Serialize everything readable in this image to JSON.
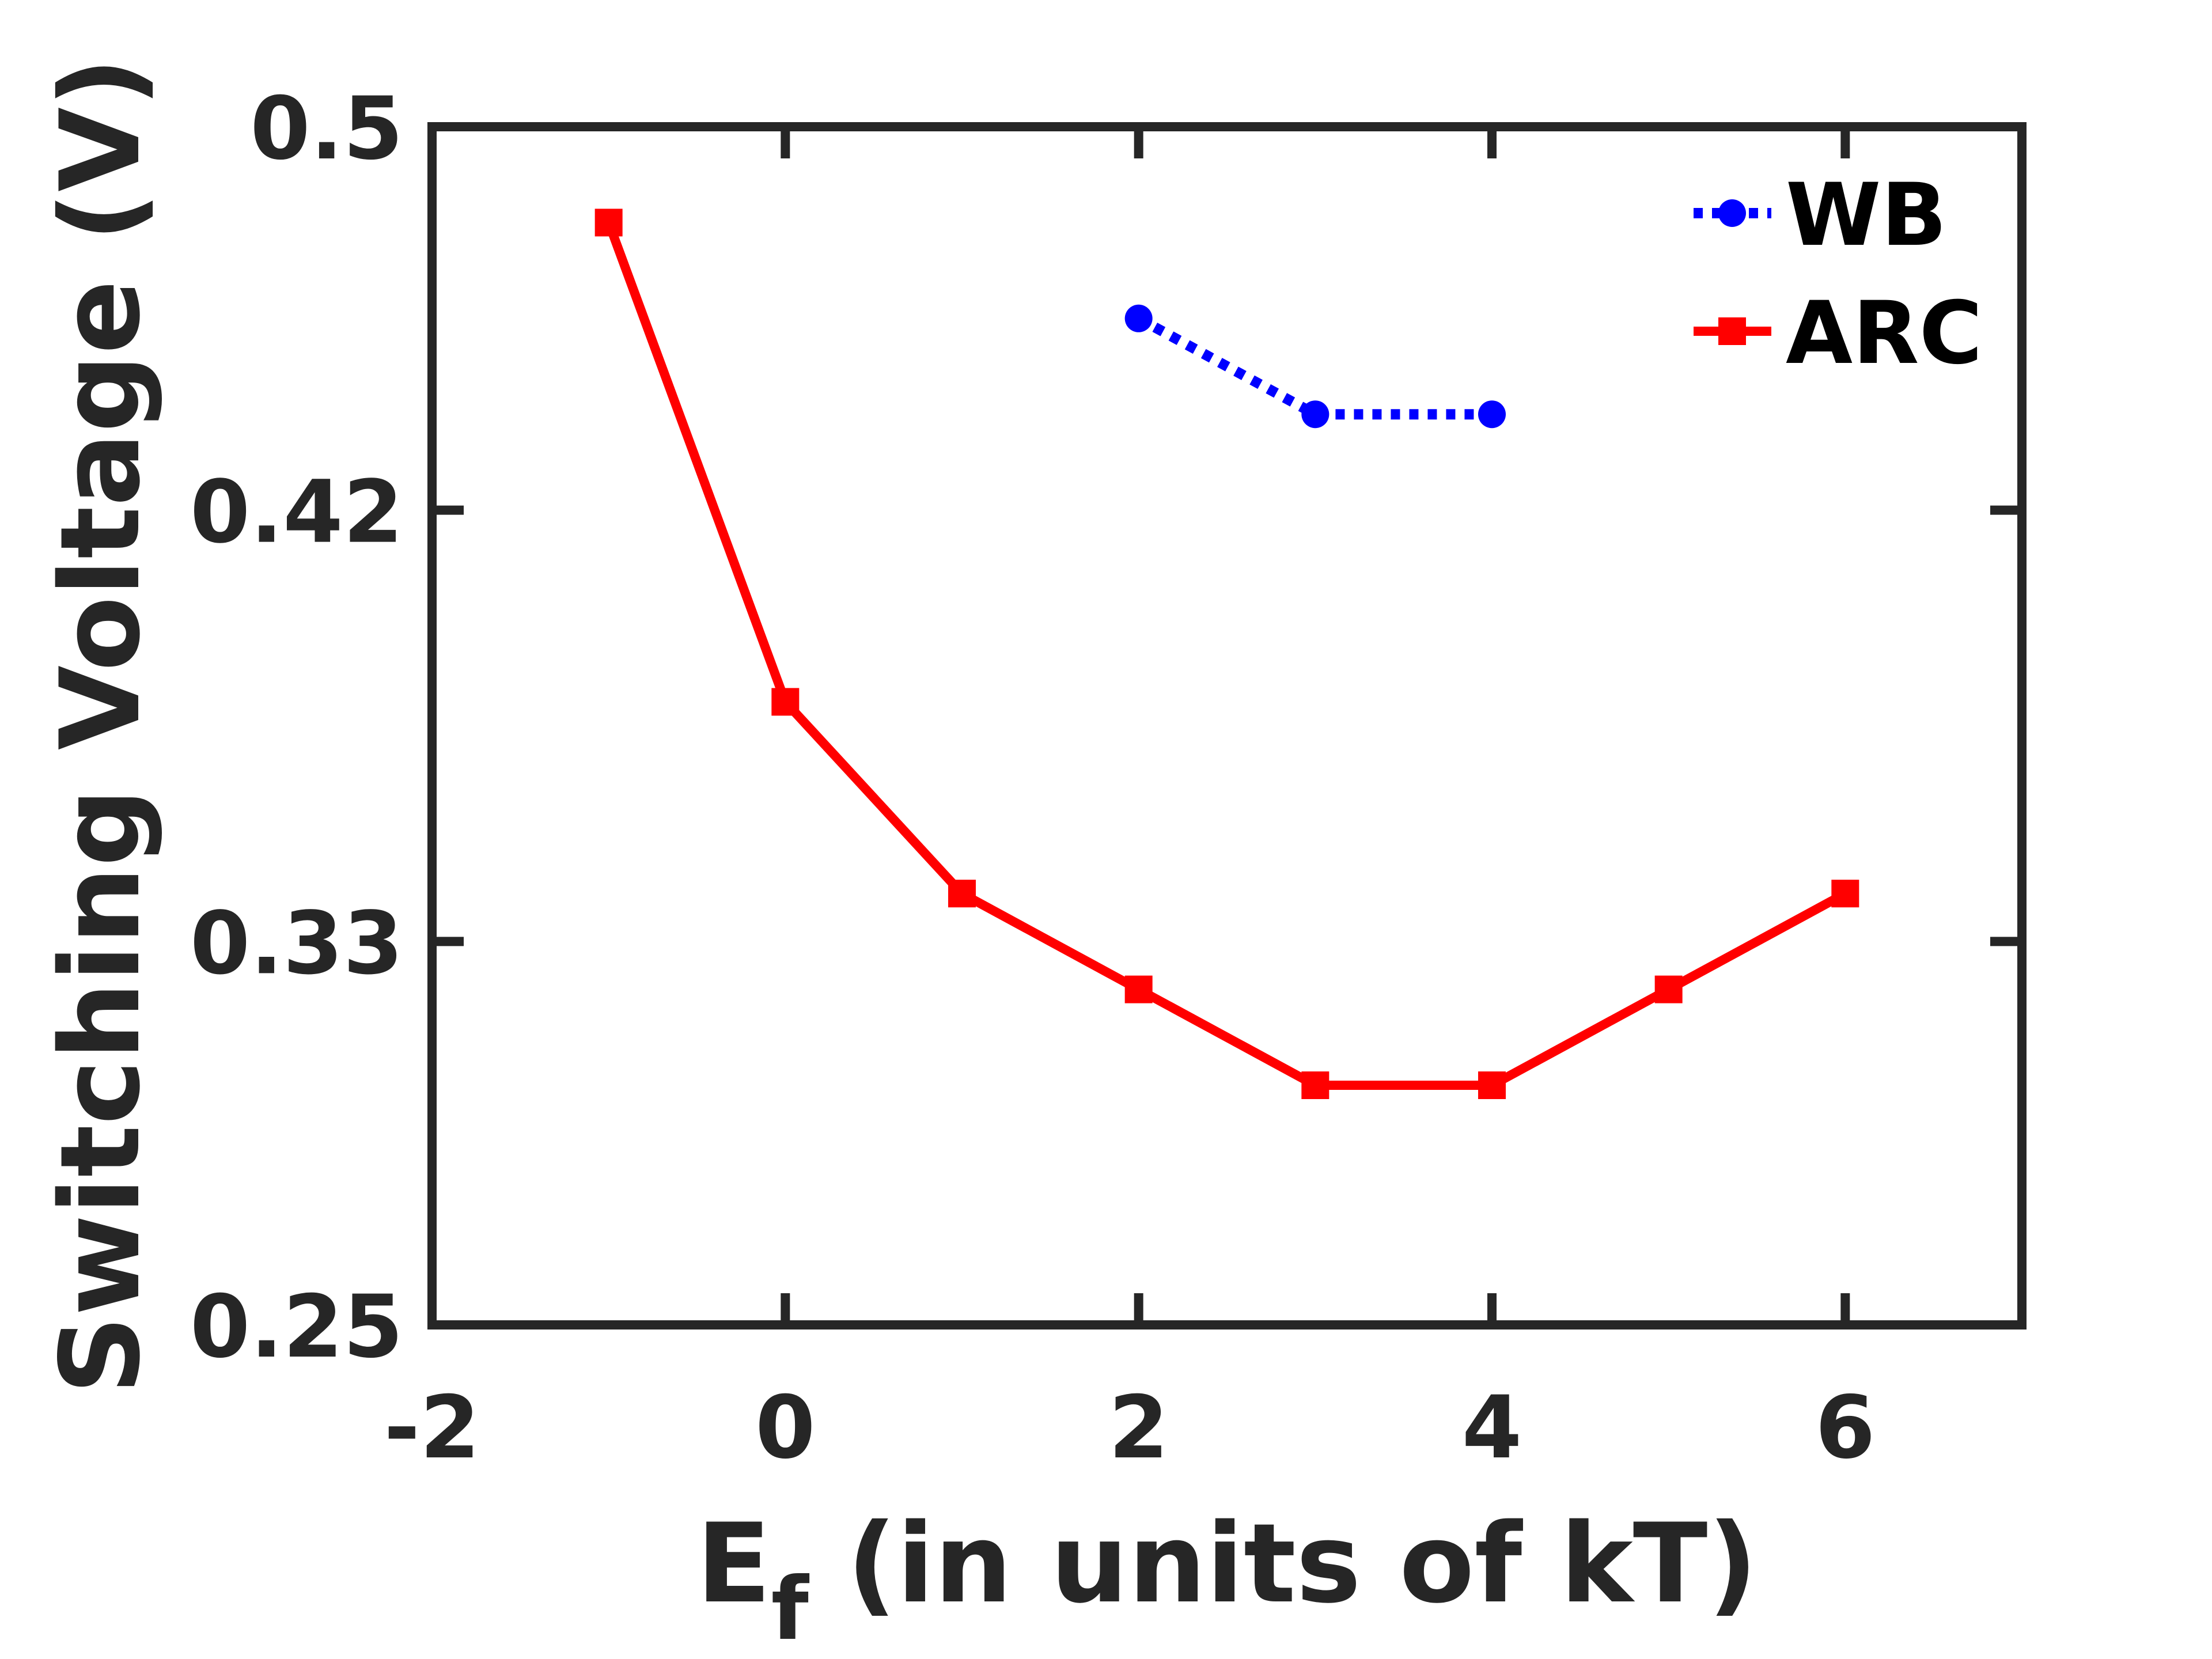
{
  "chart_data": {
    "type": "line",
    "title": "",
    "xlabel": "E",
    "xlabel_subscript": "f",
    "xlabel_rest": " (in units of kT)",
    "ylabel": "Switching Voltage (V)",
    "xlim": [
      -2,
      7
    ],
    "ylim": [
      0.25,
      0.5
    ],
    "x_ticks": [
      -2,
      0,
      2,
      4,
      6
    ],
    "x_tick_labels": [
      "-2",
      "0",
      "2",
      "4",
      "6"
    ],
    "y_ticks": [
      0.25,
      0.33,
      0.42,
      0.5
    ],
    "y_tick_labels": [
      "0.25",
      "0.33",
      "0.42",
      "0.5"
    ],
    "grid": false,
    "legend_position": "top-right",
    "series": [
      {
        "name": "WB",
        "color": "#0000ff",
        "line_style": "dotted",
        "marker": "circle",
        "x": [
          2,
          3,
          4
        ],
        "y": [
          0.46,
          0.44,
          0.44
        ]
      },
      {
        "name": "ARC",
        "color": "#ff0000",
        "line_style": "solid",
        "marker": "square",
        "x": [
          -1,
          0,
          1,
          2,
          3,
          4,
          5,
          6
        ],
        "y": [
          0.48,
          0.38,
          0.34,
          0.32,
          0.3,
          0.3,
          0.32,
          0.34
        ]
      }
    ]
  }
}
